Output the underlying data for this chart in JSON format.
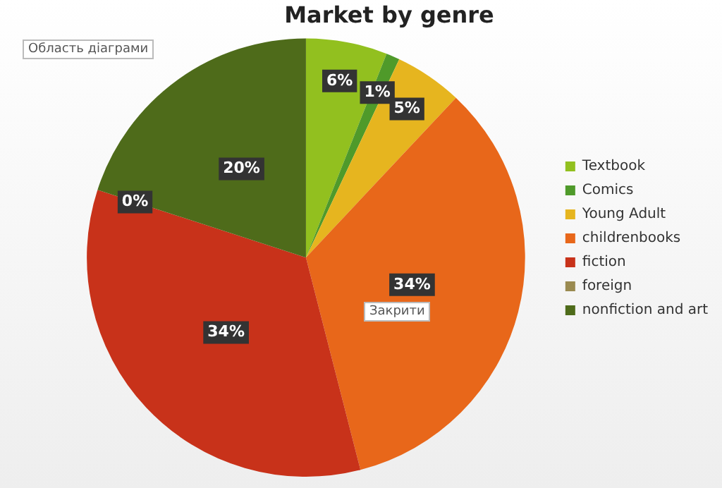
{
  "chart_data": {
    "type": "pie",
    "title": "Market by genre",
    "categories": [
      "Textbook",
      "Comics",
      "Young Adult",
      "childrenbooks",
      "fiction",
      "foreign",
      "nonfiction and art"
    ],
    "values": [
      6,
      1,
      5,
      34,
      34,
      0,
      20
    ],
    "colors": [
      "#92c01f",
      "#4f9a2a",
      "#e6b51f",
      "#e8671a",
      "#c8321a",
      "#9a8a50",
      "#4e6b1a"
    ],
    "value_labels": [
      "6%",
      "1%",
      "5%",
      "34%",
      "34%",
      "0%",
      "20%"
    ],
    "legend": "right",
    "annotations": [
      "Область діаграми",
      "Закрити"
    ]
  }
}
